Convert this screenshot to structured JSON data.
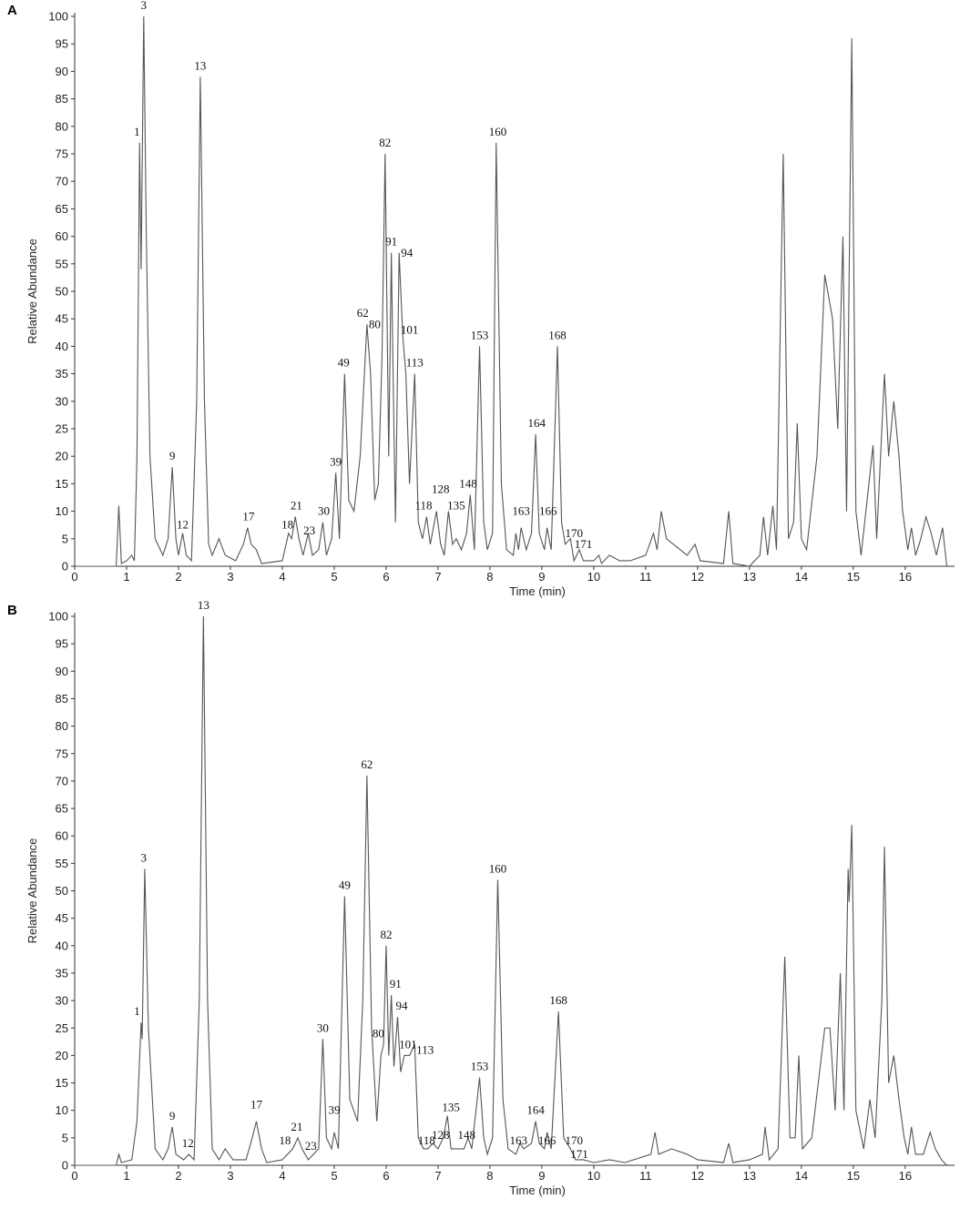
{
  "chart_data": [
    {
      "type": "line",
      "panel": "A",
      "xlabel": "Time (min)",
      "ylabel": "Relative Abundance",
      "xlim": [
        0,
        16.95
      ],
      "ylim": [
        0,
        100
      ],
      "xticks": [
        0,
        1,
        2,
        3,
        4,
        5,
        6,
        7,
        8,
        9,
        10,
        11,
        12,
        13,
        14,
        15,
        16
      ],
      "yticks": [
        0,
        5,
        10,
        15,
        20,
        25,
        30,
        35,
        40,
        45,
        50,
        55,
        60,
        65,
        70,
        75,
        80,
        85,
        90,
        95,
        100
      ],
      "x": [
        0,
        0.8,
        0.85,
        0.9,
        1.0,
        1.1,
        1.15,
        1.2,
        1.25,
        1.28,
        1.33,
        1.38,
        1.45,
        1.55,
        1.7,
        1.8,
        1.88,
        1.95,
        2.0,
        2.08,
        2.15,
        2.25,
        2.35,
        2.42,
        2.5,
        2.58,
        2.65,
        2.78,
        2.9,
        3.1,
        3.25,
        3.33,
        3.4,
        3.5,
        3.6,
        4.0,
        4.12,
        4.18,
        4.25,
        4.32,
        4.4,
        4.5,
        4.58,
        4.7,
        4.78,
        4.85,
        4.95,
        5.03,
        5.1,
        5.2,
        5.28,
        5.38,
        5.5,
        5.63,
        5.7,
        5.78,
        5.85,
        5.92,
        5.98,
        6.05,
        6.1,
        6.15,
        6.18,
        6.25,
        6.32,
        6.38,
        6.45,
        6.55,
        6.62,
        6.7,
        6.78,
        6.85,
        6.97,
        7.05,
        7.12,
        7.2,
        7.28,
        7.35,
        7.45,
        7.55,
        7.62,
        7.7,
        7.8,
        7.88,
        7.95,
        8.05,
        8.12,
        8.22,
        8.32,
        8.45,
        8.5,
        8.55,
        8.6,
        8.7,
        8.8,
        8.88,
        8.95,
        9.05,
        9.1,
        9.18,
        9.3,
        9.38,
        9.45,
        9.55,
        9.62,
        9.72,
        9.8,
        10.0,
        10.1,
        10.15,
        10.3,
        10.5,
        10.7,
        11.0,
        11.15,
        11.22,
        11.3,
        11.4,
        11.8,
        11.95,
        12.05,
        12.5,
        12.6,
        12.68,
        13.0,
        13.2,
        13.27,
        13.35,
        13.45,
        13.52,
        13.65,
        13.75,
        13.85,
        13.92,
        14.0,
        14.1,
        14.3,
        14.45,
        14.6,
        14.7,
        14.8,
        14.87,
        14.97,
        15.05,
        15.15,
        15.3,
        15.38,
        15.45,
        15.6,
        15.68,
        15.78,
        15.88,
        15.95,
        16.05,
        16.12,
        16.2,
        16.3,
        16.4,
        16.5,
        16.6,
        16.72,
        16.8
      ],
      "series": [
        {
          "color": "#555555",
          "values": [
            0,
            0,
            11,
            0.5,
            1,
            2,
            1,
            20,
            77,
            54,
            100,
            60,
            20,
            5,
            2,
            5,
            18,
            5,
            2,
            6,
            2,
            1,
            30,
            89,
            30,
            4,
            2,
            5,
            2,
            1,
            4,
            7,
            4,
            3,
            0.5,
            1,
            6,
            5,
            9,
            5,
            2,
            6,
            2,
            3,
            8,
            2,
            5,
            17,
            5,
            35,
            12,
            10,
            20,
            44,
            35,
            12,
            15,
            38,
            75,
            20,
            57,
            25,
            8,
            57,
            42,
            35,
            15,
            35,
            8,
            5,
            9,
            4,
            10,
            4,
            2,
            10,
            4,
            5,
            3,
            6,
            13,
            3,
            40,
            8,
            3,
            6,
            77,
            15,
            3,
            2,
            6,
            3,
            7,
            3,
            6,
            24,
            6,
            3,
            7,
            3,
            40,
            8,
            4,
            5,
            1,
            3,
            1,
            1,
            2,
            0.5,
            2,
            1,
            1,
            2,
            6,
            3,
            10,
            5,
            2,
            4,
            1,
            0.5,
            10,
            0.5,
            0,
            2,
            9,
            2,
            11,
            3,
            75,
            5,
            8,
            26,
            5,
            3,
            20,
            53,
            45,
            25,
            60,
            10,
            96,
            10,
            2,
            15,
            22,
            5,
            35,
            20,
            30,
            20,
            10,
            3,
            7,
            2,
            5,
            9,
            6,
            2,
            7,
            0
          ]
        }
      ],
      "annotations": [
        {
          "text": "1",
          "x": 1.2,
          "y": 78
        },
        {
          "text": "3",
          "x": 1.33,
          "y": 101
        },
        {
          "text": "9",
          "x": 1.88,
          "y": 19
        },
        {
          "text": "12",
          "x": 2.08,
          "y": 6.5
        },
        {
          "text": "13",
          "x": 2.42,
          "y": 90
        },
        {
          "text": "17",
          "x": 3.35,
          "y": 8
        },
        {
          "text": "18",
          "x": 4.1,
          "y": 6.5
        },
        {
          "text": "21",
          "x": 4.27,
          "y": 10
        },
        {
          "text": "23",
          "x": 4.52,
          "y": 5.5
        },
        {
          "text": "30",
          "x": 4.8,
          "y": 9
        },
        {
          "text": "39",
          "x": 5.03,
          "y": 18
        },
        {
          "text": "49",
          "x": 5.18,
          "y": 36
        },
        {
          "text": "62",
          "x": 5.55,
          "y": 45
        },
        {
          "text": "80",
          "x": 5.78,
          "y": 43
        },
        {
          "text": "82",
          "x": 5.98,
          "y": 76
        },
        {
          "text": "91",
          "x": 6.1,
          "y": 58
        },
        {
          "text": "94",
          "x": 6.4,
          "y": 56
        },
        {
          "text": "101",
          "x": 6.45,
          "y": 42
        },
        {
          "text": "113",
          "x": 6.55,
          "y": 36
        },
        {
          "text": "118",
          "x": 6.72,
          "y": 10
        },
        {
          "text": "128",
          "x": 7.05,
          "y": 13
        },
        {
          "text": "135",
          "x": 7.35,
          "y": 10
        },
        {
          "text": "148",
          "x": 7.58,
          "y": 14
        },
        {
          "text": "153",
          "x": 7.8,
          "y": 41
        },
        {
          "text": "160",
          "x": 8.15,
          "y": 78
        },
        {
          "text": "163",
          "x": 8.6,
          "y": 9
        },
        {
          "text": "164",
          "x": 8.9,
          "y": 25
        },
        {
          "text": "166",
          "x": 9.12,
          "y": 9
        },
        {
          "text": "168",
          "x": 9.3,
          "y": 41
        },
        {
          "text": "170",
          "x": 9.62,
          "y": 5
        },
        {
          "text": "171",
          "x": 9.8,
          "y": 3
        }
      ]
    },
    {
      "type": "line",
      "panel": "B",
      "xlabel": "Time (min)",
      "ylabel": "Relative Abundance",
      "xlim": [
        0,
        16.95
      ],
      "ylim": [
        0,
        100
      ],
      "xticks": [
        0,
        1,
        2,
        3,
        4,
        5,
        6,
        7,
        8,
        9,
        10,
        11,
        12,
        13,
        14,
        15,
        16
      ],
      "yticks": [
        0,
        5,
        10,
        15,
        20,
        25,
        30,
        35,
        40,
        45,
        50,
        55,
        60,
        65,
        70,
        75,
        80,
        85,
        90,
        95,
        100
      ],
      "x": [
        0,
        0.8,
        0.85,
        0.9,
        1.1,
        1.2,
        1.28,
        1.3,
        1.35,
        1.42,
        1.55,
        1.7,
        1.8,
        1.88,
        1.95,
        2.1,
        2.2,
        2.3,
        2.4,
        2.48,
        2.56,
        2.65,
        2.78,
        2.9,
        3.05,
        3.3,
        3.42,
        3.5,
        3.6,
        3.7,
        4.0,
        4.1,
        4.2,
        4.3,
        4.38,
        4.5,
        4.6,
        4.7,
        4.78,
        4.85,
        4.95,
        5.0,
        5.08,
        5.2,
        5.3,
        5.45,
        5.55,
        5.63,
        5.72,
        5.82,
        5.9,
        5.95,
        6.0,
        6.05,
        6.1,
        6.15,
        6.22,
        6.28,
        6.35,
        6.45,
        6.55,
        6.62,
        6.72,
        6.8,
        6.9,
        7.0,
        7.1,
        7.18,
        7.25,
        7.4,
        7.5,
        7.58,
        7.65,
        7.8,
        7.88,
        7.95,
        8.05,
        8.15,
        8.25,
        8.35,
        8.5,
        8.58,
        8.65,
        8.8,
        8.88,
        8.95,
        9.05,
        9.1,
        9.18,
        9.32,
        9.42,
        9.55,
        9.65,
        9.8,
        10.0,
        10.3,
        10.6,
        11.1,
        11.18,
        11.25,
        11.5,
        11.8,
        12.0,
        12.5,
        12.6,
        12.68,
        13.0,
        13.25,
        13.3,
        13.38,
        13.55,
        13.68,
        13.78,
        13.88,
        13.95,
        14.02,
        14.2,
        14.45,
        14.55,
        14.65,
        14.75,
        14.82,
        14.9,
        14.92,
        14.97,
        15.05,
        15.2,
        15.32,
        15.42,
        15.55,
        15.6,
        15.68,
        15.78,
        15.88,
        15.98,
        16.05,
        16.12,
        16.2,
        16.35,
        16.48,
        16.58,
        16.7,
        16.8
      ],
      "series": [
        {
          "color": "#555555",
          "values": [
            0,
            0,
            2,
            0.5,
            1,
            8,
            26,
            23,
            54,
            25,
            3,
            1,
            3,
            7,
            2,
            1,
            2,
            1,
            30,
            100,
            30,
            3,
            1,
            3,
            1,
            1,
            5,
            8,
            3,
            0.5,
            1,
            2,
            3,
            5,
            3,
            1,
            2,
            3,
            23,
            5,
            3,
            6,
            3,
            49,
            12,
            8,
            30,
            71,
            25,
            8,
            20,
            22,
            40,
            20,
            31,
            18,
            27,
            17,
            20,
            20,
            22,
            5,
            3,
            3,
            4,
            3,
            5,
            9,
            3,
            3,
            3,
            5,
            3,
            16,
            5,
            2,
            5,
            52,
            12,
            3,
            2,
            4,
            3,
            4,
            8,
            4,
            3,
            6,
            3,
            28,
            5,
            3,
            1,
            1,
            0.5,
            1,
            0.5,
            2,
            6,
            2,
            3,
            2,
            1,
            0.5,
            4,
            0.5,
            1,
            2,
            7,
            1,
            3,
            38,
            5,
            5,
            20,
            3,
            5,
            25,
            25,
            10,
            35,
            10,
            54,
            48,
            62,
            10,
            3,
            12,
            5,
            30,
            58,
            15,
            20,
            12,
            5,
            2,
            7,
            2,
            2,
            6,
            3,
            1,
            0
          ]
        }
      ],
      "annotations": [
        {
          "text": "1",
          "x": 1.2,
          "y": 27
        },
        {
          "text": "3",
          "x": 1.33,
          "y": 55
        },
        {
          "text": "9",
          "x": 1.88,
          "y": 8
        },
        {
          "text": "12",
          "x": 2.18,
          "y": 3
        },
        {
          "text": "13",
          "x": 2.48,
          "y": 101
        },
        {
          "text": "17",
          "x": 3.5,
          "y": 10
        },
        {
          "text": "18",
          "x": 4.05,
          "y": 3.5
        },
        {
          "text": "21",
          "x": 4.28,
          "y": 6
        },
        {
          "text": "23",
          "x": 4.55,
          "y": 2.5
        },
        {
          "text": "30",
          "x": 4.78,
          "y": 24
        },
        {
          "text": "39",
          "x": 5.0,
          "y": 9
        },
        {
          "text": "49",
          "x": 5.2,
          "y": 50
        },
        {
          "text": "62",
          "x": 5.63,
          "y": 72
        },
        {
          "text": "80",
          "x": 5.85,
          "y": 23
        },
        {
          "text": "82",
          "x": 6.0,
          "y": 41
        },
        {
          "text": "91",
          "x": 6.18,
          "y": 32
        },
        {
          "text": "94",
          "x": 6.3,
          "y": 28
        },
        {
          "text": "101",
          "x": 6.42,
          "y": 21
        },
        {
          "text": "113",
          "x": 6.75,
          "y": 20
        },
        {
          "text": "118",
          "x": 6.78,
          "y": 3.5
        },
        {
          "text": "128",
          "x": 7.05,
          "y": 4.5
        },
        {
          "text": "135",
          "x": 7.25,
          "y": 9.5
        },
        {
          "text": "148",
          "x": 7.55,
          "y": 4.5
        },
        {
          "text": "153",
          "x": 7.8,
          "y": 17
        },
        {
          "text": "160",
          "x": 8.15,
          "y": 53
        },
        {
          "text": "163",
          "x": 8.55,
          "y": 3.5
        },
        {
          "text": "164",
          "x": 8.88,
          "y": 9
        },
        {
          "text": "166",
          "x": 9.1,
          "y": 3.5
        },
        {
          "text": "168",
          "x": 9.32,
          "y": 29
        },
        {
          "text": "170",
          "x": 9.62,
          "y": 3.5
        },
        {
          "text": "171",
          "x": 9.72,
          "y": 1
        }
      ]
    }
  ]
}
